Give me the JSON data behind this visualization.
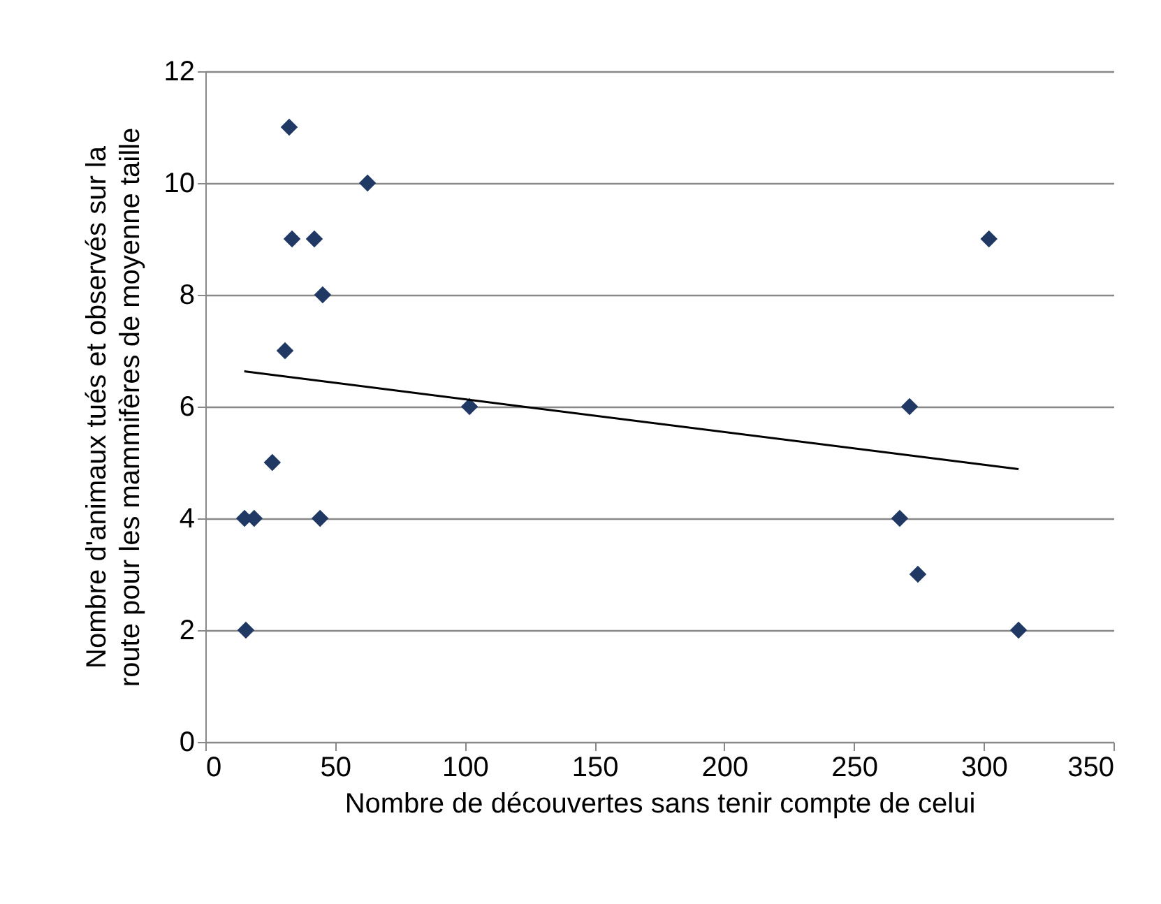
{
  "chart_data": {
    "type": "scatter",
    "xlabel": "Nombre de découvertes sans tenir compte de celui",
    "ylabel": "Nombre d'animaux tués et observés sur la\nroute pour les mammifères de moyenne taille",
    "xlim": [
      0,
      350
    ],
    "xticks": [
      0,
      50,
      100,
      150,
      200,
      250,
      300,
      350
    ],
    "ylim": [
      0,
      12
    ],
    "yticks": [
      0,
      2,
      4,
      6,
      8,
      10,
      12
    ],
    "grid": "y",
    "marker": "diamond",
    "series": [
      {
        "color": "#1f3864",
        "x": [
          15.1,
          18.8,
          15.6,
          25.8,
          30.7,
          32.3,
          33.4,
          42,
          45.2,
          44.2,
          62.5,
          101.8,
          267.6,
          271.4,
          274.6,
          302,
          313.4
        ],
        "values": [
          4,
          4,
          2,
          5,
          7,
          11,
          9,
          9,
          8,
          4,
          10,
          6,
          4,
          6,
          3,
          9,
          2
        ]
      },
      {
        "type": "line",
        "marker": "none",
        "color": "#000000",
        "x": [
          15,
          313.4
        ],
        "values": [
          6.63,
          4.88
        ]
      }
    ]
  }
}
